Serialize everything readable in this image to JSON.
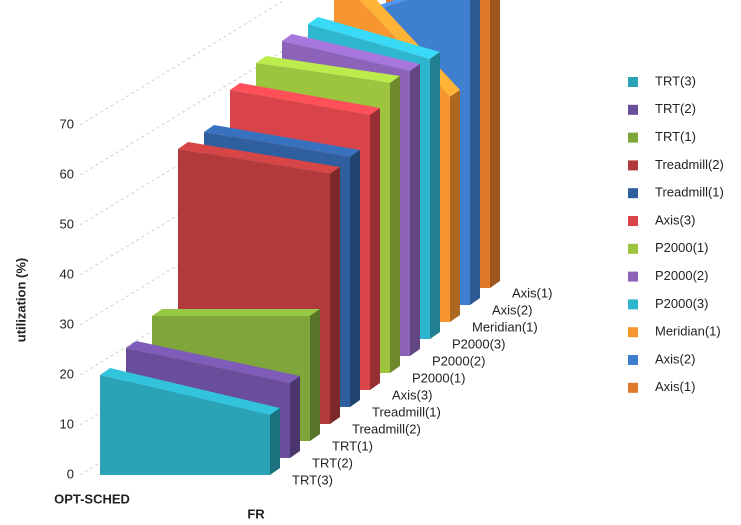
{
  "chart_data": {
    "type": "area3d",
    "y_label": "utilization (%)",
    "categories": [
      "OPT-SCHED",
      "FR"
    ],
    "ylim": [
      0,
      70
    ],
    "yticks": [
      0,
      10,
      20,
      30,
      40,
      50,
      60,
      70
    ],
    "grid": true,
    "series": [
      {
        "name": "TRT(3)",
        "color": "#2aa3b7",
        "values": [
          20,
          12
        ]
      },
      {
        "name": "TRT(2)",
        "color": "#6a4d9b",
        "values": [
          22,
          15
        ]
      },
      {
        "name": "TRT(1)",
        "color": "#7ea63a",
        "values": [
          25,
          25
        ]
      },
      {
        "name": "Treadmill(2)",
        "color": "#b33a3a",
        "values": [
          55,
          50
        ]
      },
      {
        "name": "Treadmill(1)",
        "color": "#2f5f9e",
        "values": [
          55,
          50
        ]
      },
      {
        "name": "Axis(3)",
        "color": "#d9434a",
        "values": [
          60,
          55
        ]
      },
      {
        "name": "P2000(1)",
        "color": "#9cc43f",
        "values": [
          62,
          58
        ]
      },
      {
        "name": "P2000(2)",
        "color": "#8c63b8",
        "values": [
          63,
          57
        ]
      },
      {
        "name": "P2000(3)",
        "color": "#2fb6cf",
        "values": [
          63,
          56
        ]
      },
      {
        "name": "Meridian(1)",
        "color": "#f7952e",
        "values": [
          70,
          45
        ]
      },
      {
        "name": "Axis(2)",
        "color": "#3f7fcf",
        "values": [
          58,
          65
        ]
      },
      {
        "name": "Axis(1)",
        "color": "#e07a2a",
        "values": [
          60,
          75
        ]
      }
    ]
  }
}
